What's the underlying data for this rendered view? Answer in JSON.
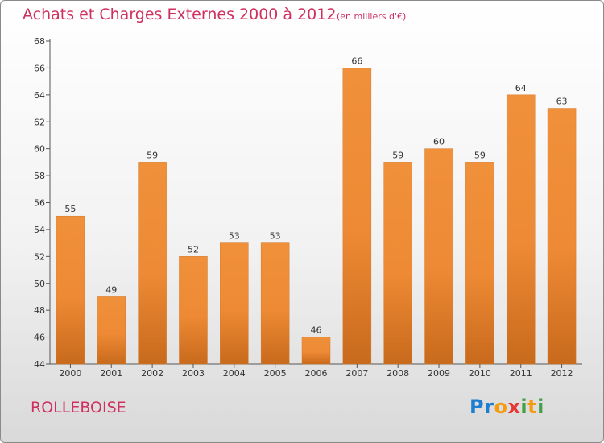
{
  "chart_data": {
    "type": "bar",
    "title": "Achats et Charges Externes 2000 à 2012",
    "subtitle": "(en milliers d'€)",
    "categories": [
      "2000",
      "2001",
      "2002",
      "2003",
      "2004",
      "2005",
      "2006",
      "2007",
      "2008",
      "2009",
      "2010",
      "2011",
      "2012"
    ],
    "values": [
      55,
      49,
      59,
      52,
      53,
      53,
      46,
      66,
      59,
      60,
      59,
      64,
      63
    ],
    "ylim": [
      44,
      68
    ],
    "yticks": [
      44,
      46,
      48,
      50,
      52,
      54,
      56,
      58,
      60,
      62,
      64,
      66,
      68
    ],
    "grid": false,
    "bar_color": "#f0903a"
  },
  "footer": {
    "place": "ROLLEBOISE",
    "logo_letters": [
      {
        "ch": "P",
        "color": "#1e7fd0"
      },
      {
        "ch": "r",
        "color": "#1e7fd0"
      },
      {
        "ch": "o",
        "color": "#f39c12"
      },
      {
        "ch": "x",
        "color": "#e53935"
      },
      {
        "ch": "i",
        "color": "#43a047"
      },
      {
        "ch": "t",
        "color": "#f39c12"
      },
      {
        "ch": "i",
        "color": "#43a047"
      }
    ]
  },
  "colors": {
    "title": "#d0305f",
    "bar": "#f0903a",
    "bar_dark": "#c86a1c"
  }
}
